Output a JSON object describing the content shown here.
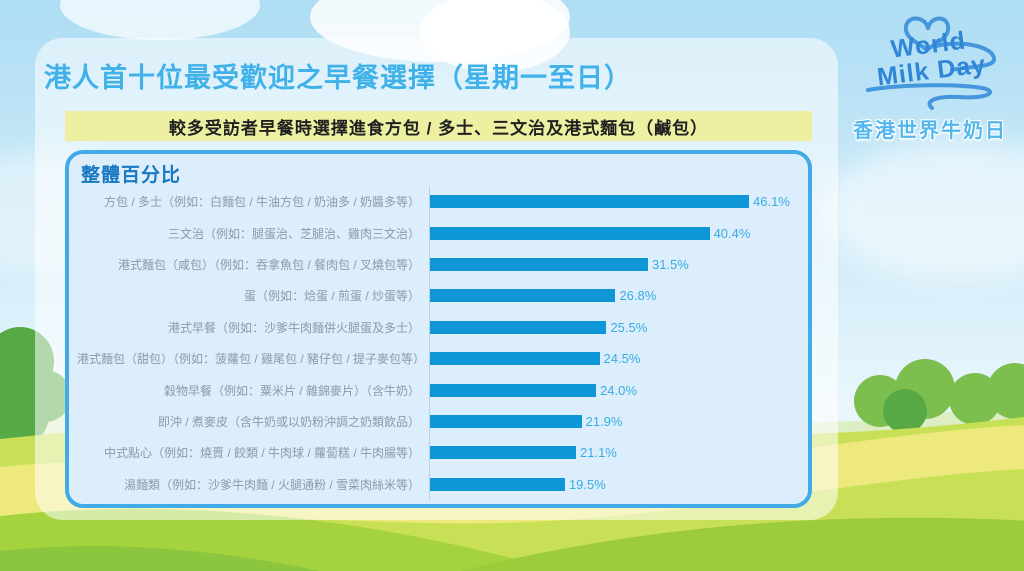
{
  "page": {
    "title": "港人首十位最受歡迎之早餐選擇（星期一至日）",
    "banner": "較多受訪者早餐時選擇進食方包 / 多士、三文治及港式麵包（鹹包）"
  },
  "logo": {
    "name_line1": "World",
    "name_line2": "Milk Day",
    "chinese": "香港世界牛奶日"
  },
  "chart_data": {
    "type": "bar",
    "orientation": "horizontal",
    "title": "整體百分比",
    "unit": "%",
    "xlim": [
      0,
      50
    ],
    "grid": false,
    "bar_color": "#0f96d6",
    "value_label_color": "#38abe5",
    "categories": [
      "方包 / 多士（例如：白麵包 / 牛油方包 / 奶油多 / 奶醬多等）",
      "三文治（例如：腿蛋治、芝腿治、雞肉三文治）",
      "港式麵包（咸包）（例如：吞拿魚包 / 餐肉包 / 叉燒包等）",
      "蛋（例如：烚蛋 / 煎蛋 / 炒蛋等）",
      "港式早餐（例如：沙爹牛肉麵併火腿蛋及多士）",
      "港式麵包（甜包）（例如：菠蘿包 / 雞尾包 / 豬仔包 / 提子麥包等）",
      "穀物早餐（例如：粟米片 / 雜錦麥片）（含牛奶）",
      "即沖 / 煮麥皮（含牛奶或以奶粉沖調之奶類飲品）",
      "中式點心（例如：燒賣 / 餃類 / 牛肉球 / 蘿蔔糕 / 牛肉腸等）",
      "湯麵類（例如：沙爹牛肉麵 / 火腿通粉 / 雪菜肉絲米等）"
    ],
    "values": [
      46.1,
      40.4,
      31.5,
      26.8,
      25.5,
      24.5,
      24.0,
      21.9,
      21.1,
      19.5
    ],
    "value_labels": [
      "46.1%",
      "40.4%",
      "31.5%",
      "26.8%",
      "25.5%",
      "24.5%",
      "24.0%",
      "21.9%",
      "21.1%",
      "19.5%"
    ]
  }
}
